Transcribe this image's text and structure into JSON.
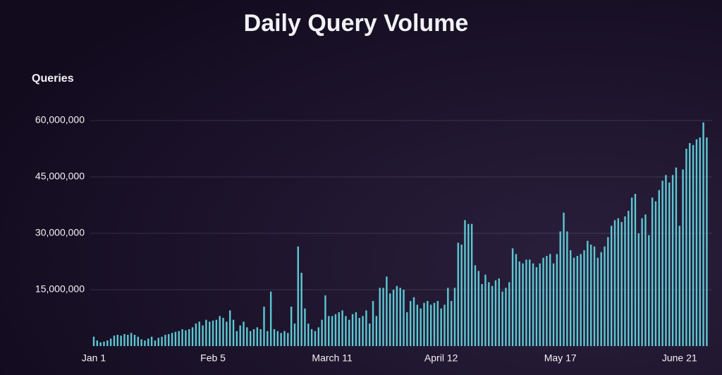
{
  "chart_data": {
    "type": "bar",
    "title": "Daily Query Volume",
    "y_label": "Queries",
    "color": "#5cc8d2",
    "grid": true,
    "ylim": [
      0,
      60000000
    ],
    "yticks": [
      {
        "value": 15000000,
        "label": "15,000,000"
      },
      {
        "value": 30000000,
        "label": "30,000,000"
      },
      {
        "value": 45000000,
        "label": "45,000,000"
      },
      {
        "value": 60000000,
        "label": "60,000,000"
      }
    ],
    "categories": [
      "Jan 1",
      null,
      null,
      null,
      null,
      null,
      null,
      null,
      null,
      null,
      null,
      null,
      null,
      null,
      null,
      null,
      null,
      null,
      null,
      null,
      null,
      null,
      null,
      null,
      null,
      null,
      null,
      null,
      null,
      null,
      null,
      null,
      null,
      null,
      null,
      "Feb 5",
      null,
      null,
      null,
      null,
      null,
      null,
      null,
      null,
      null,
      null,
      null,
      null,
      null,
      null,
      null,
      null,
      null,
      null,
      null,
      null,
      null,
      null,
      null,
      null,
      null,
      null,
      null,
      null,
      null,
      null,
      null,
      null,
      null,
      null,
      "March 11",
      null,
      null,
      null,
      null,
      null,
      null,
      null,
      null,
      null,
      null,
      null,
      null,
      null,
      null,
      null,
      null,
      null,
      null,
      null,
      null,
      null,
      null,
      null,
      null,
      null,
      null,
      null,
      null,
      null,
      null,
      null,
      "April 12",
      null,
      null,
      null,
      null,
      null,
      null,
      null,
      null,
      null,
      null,
      null,
      null,
      null,
      null,
      null,
      null,
      null,
      null,
      null,
      null,
      null,
      null,
      null,
      null,
      null,
      null,
      null,
      null,
      null,
      null,
      null,
      null,
      null,
      null,
      "May 17",
      null,
      null,
      null,
      null,
      null,
      null,
      null,
      null,
      null,
      null,
      null,
      null,
      null,
      null,
      null,
      null,
      null,
      null,
      null,
      null,
      null,
      null,
      null,
      null,
      null,
      null,
      null,
      null,
      null,
      null,
      null,
      null,
      null,
      null,
      "June 21",
      null,
      null,
      null,
      null,
      null,
      null,
      null,
      null
    ],
    "values": [
      2500000,
      1500000,
      1000000,
      1200000,
      1500000,
      2000000,
      2800000,
      3000000,
      2800000,
      3200000,
      3000000,
      3500000,
      3000000,
      2500000,
      1800000,
      1500000,
      2000000,
      2500000,
      1500000,
      2200000,
      2500000,
      3000000,
      3200000,
      3500000,
      3800000,
      4000000,
      4500000,
      4200000,
      4500000,
      5000000,
      6000000,
      6500000,
      5500000,
      7000000,
      6500000,
      6800000,
      7000000,
      8000000,
      7500000,
      6500000,
      9500000,
      7000000,
      4000000,
      5500000,
      6500000,
      5000000,
      4000000,
      4500000,
      5000000,
      4500000,
      10500000,
      4000000,
      14500000,
      4500000,
      4000000,
      3500000,
      4000000,
      3500000,
      10500000,
      6000000,
      26500000,
      19500000,
      10000000,
      6000000,
      4500000,
      4000000,
      5000000,
      7000000,
      13500000,
      8000000,
      8000000,
      8500000,
      9000000,
      9500000,
      8000000,
      7000000,
      8500000,
      9000000,
      7500000,
      8000000,
      9500000,
      6000000,
      12000000,
      8000000,
      15500000,
      15500000,
      18500000,
      14000000,
      15000000,
      16000000,
      15500000,
      15000000,
      9000000,
      12000000,
      13000000,
      11000000,
      10000000,
      11500000,
      12000000,
      11000000,
      11500000,
      12000000,
      10000000,
      11000000,
      15500000,
      12000000,
      15500000,
      27500000,
      27000000,
      33500000,
      32500000,
      32500000,
      21500000,
      20000000,
      16500000,
      19000000,
      17000000,
      16000000,
      17500000,
      18000000,
      14500000,
      15500000,
      17000000,
      26000000,
      24500000,
      22500000,
      22000000,
      23000000,
      23000000,
      22000000,
      21000000,
      22000000,
      23500000,
      24000000,
      24500000,
      22000000,
      24500000,
      30500000,
      35500000,
      30500000,
      25500000,
      23500000,
      24000000,
      24500000,
      25500000,
      28000000,
      27000000,
      26500000,
      23500000,
      25000000,
      26500000,
      29000000,
      32000000,
      33500000,
      34000000,
      33000000,
      34500000,
      36000000,
      39500000,
      40500000,
      30000000,
      34000000,
      35000000,
      29500000,
      39500000,
      38500000,
      41500000,
      44000000,
      45500000,
      43500000,
      45500000,
      47500000,
      32000000,
      47000000,
      52500000,
      54000000,
      53500000,
      55000000,
      55500000,
      59500000,
      55500000
    ]
  }
}
